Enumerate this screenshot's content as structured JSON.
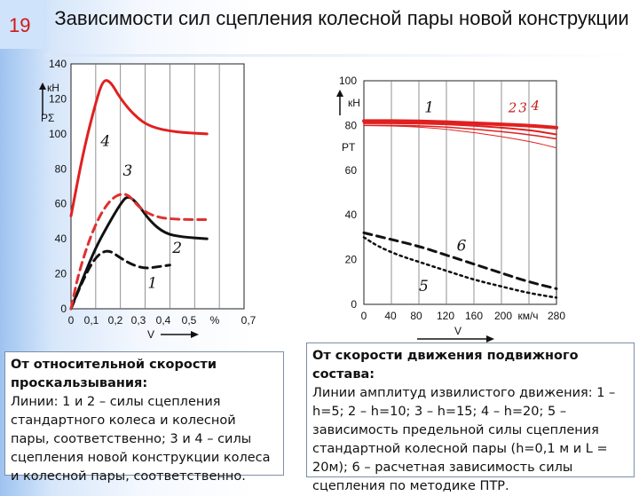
{
  "slide": {
    "number": "19",
    "title": "Зависимости сил сцепления колесной пары новой конструкции"
  },
  "left_box": {
    "heading": "От относительной скорости проскальзывания:",
    "text": "Линии: 1 и 2 – силы сцепления стандартного колеса и колесной пары, соответственно; 3 и 4 – силы сцепления новой конструкции колеса и колесной пары, соответственно."
  },
  "right_box": {
    "heading": "От скорости движения подвижного состава:",
    "text": "Линии амплитуд извилистого движения: 1 – h=5; 2 – h=10; 3 – h=15; 4 – h=20; 5 – зависимость предельной силы сцепления стандартной колесной пары (h=0,1 м и L = 20м); 6 – расчетная зависимость силы сцепления по методике ПТР."
  },
  "chart_data": [
    {
      "type": "line",
      "ylabel": "PΣ",
      "yunit": "кН",
      "xlabel": "V",
      "xunit": "%",
      "ylim": [
        0,
        140
      ],
      "xlim": [
        0,
        0.7
      ],
      "yticks": [
        "0",
        "20",
        "40",
        "60",
        "80",
        "100",
        "120",
        "140"
      ],
      "xticks": [
        "0",
        "0,1",
        "0,2",
        "0,3",
        "0,4",
        "0,5",
        "%",
        "0,7"
      ],
      "series": [
        {
          "name": "1",
          "color": "#111111",
          "dash": "dash",
          "width": 3,
          "points": [
            [
              0,
              0
            ],
            [
              0.05,
              17
            ],
            [
              0.1,
              30
            ],
            [
              0.15,
              34
            ],
            [
              0.2,
              29
            ],
            [
              0.25,
              25
            ],
            [
              0.3,
              23
            ],
            [
              0.35,
              24
            ],
            [
              0.4,
              25
            ]
          ]
        },
        {
          "name": "2",
          "color": "#111111",
          "dash": "solid",
          "width": 3,
          "points": [
            [
              0,
              0
            ],
            [
              0.05,
              18
            ],
            [
              0.1,
              35
            ],
            [
              0.15,
              48
            ],
            [
              0.2,
              60
            ],
            [
              0.23,
              65
            ],
            [
              0.27,
              60
            ],
            [
              0.32,
              50
            ],
            [
              0.38,
              43
            ],
            [
              0.45,
              41
            ],
            [
              0.55,
              40
            ]
          ]
        },
        {
          "name": "3",
          "color": "#e03030",
          "dash": "dash",
          "width": 3,
          "points": [
            [
              0,
              0
            ],
            [
              0.03,
              20
            ],
            [
              0.08,
              42
            ],
            [
              0.13,
              57
            ],
            [
              0.18,
              65
            ],
            [
              0.23,
              66
            ],
            [
              0.28,
              57
            ],
            [
              0.35,
              52
            ],
            [
              0.45,
              51
            ],
            [
              0.55,
              51
            ]
          ]
        },
        {
          "name": "4",
          "color": "#e02020",
          "dash": "solid",
          "width": 3,
          "points": [
            [
              0,
              53
            ],
            [
              0.05,
              90
            ],
            [
              0.1,
              118
            ],
            [
              0.13,
              131
            ],
            [
              0.16,
              130
            ],
            [
              0.2,
              120
            ],
            [
              0.26,
              110
            ],
            [
              0.32,
              104
            ],
            [
              0.42,
              101
            ],
            [
              0.55,
              100
            ]
          ]
        }
      ],
      "labels": [
        {
          "text": "4",
          "x": 0.12,
          "y": 93
        },
        {
          "text": "3",
          "x": 0.21,
          "y": 76
        },
        {
          "text": "2",
          "x": 0.41,
          "y": 32
        },
        {
          "text": "1",
          "x": 0.31,
          "y": 12
        }
      ]
    },
    {
      "type": "line",
      "ylabel": "PT",
      "yunit": "кН",
      "xlabel": "V",
      "xunit": "км/ч",
      "ylim": [
        0,
        100
      ],
      "xlim": [
        0,
        280
      ],
      "yticks": [
        "0",
        "20",
        "40",
        "60",
        "80",
        "100"
      ],
      "xticks": [
        "0",
        "40",
        "80",
        "120",
        "160",
        "200",
        "км/ч",
        "280"
      ],
      "series": [
        {
          "name": "1",
          "color": "#e02020",
          "dash": "solid",
          "width": 4,
          "points": [
            [
              0,
              82
            ],
            [
              80,
              82
            ],
            [
              160,
              81
            ],
            [
              240,
              80
            ],
            [
              280,
              79
            ]
          ]
        },
        {
          "name": "2",
          "color": "#e02020",
          "dash": "solid",
          "width": 2,
          "points": [
            [
              0,
              81
            ],
            [
              80,
              81
            ],
            [
              160,
              80
            ],
            [
              240,
              78
            ],
            [
              280,
              76
            ]
          ]
        },
        {
          "name": "3",
          "color": "#e02020",
          "dash": "solid",
          "width": 1.5,
          "points": [
            [
              0,
              80
            ],
            [
              80,
              80
            ],
            [
              160,
              78.5
            ],
            [
              240,
              76
            ],
            [
              280,
              74
            ]
          ]
        },
        {
          "name": "4",
          "color": "#e02020",
          "dash": "solid",
          "width": 1,
          "points": [
            [
              0,
              80
            ],
            [
              80,
              79.5
            ],
            [
              160,
              77
            ],
            [
              240,
              73
            ],
            [
              280,
              70
            ]
          ]
        },
        {
          "name": "5",
          "color": "#111111",
          "dash": "dot",
          "width": 2.5,
          "points": [
            [
              0,
              30
            ],
            [
              20,
              26
            ],
            [
              50,
              22
            ],
            [
              80,
              19
            ],
            [
              120,
              15
            ],
            [
              160,
              11
            ],
            [
              200,
              8
            ],
            [
              240,
              5
            ],
            [
              280,
              3
            ]
          ]
        },
        {
          "name": "6",
          "color": "#111111",
          "dash": "dash",
          "width": 3,
          "points": [
            [
              0,
              32
            ],
            [
              40,
              29
            ],
            [
              80,
              26
            ],
            [
              120,
              22
            ],
            [
              160,
              18
            ],
            [
              200,
              14
            ],
            [
              240,
              10
            ],
            [
              280,
              7
            ]
          ]
        }
      ],
      "labels": [
        {
          "text": "1",
          "x": 88,
          "y": 86,
          "color": "#111111"
        },
        {
          "text": "2",
          "x": 210,
          "y": 86,
          "color": "#c02020"
        },
        {
          "text": "3",
          "x": 225,
          "y": 86,
          "color": "#c02020"
        },
        {
          "text": "4",
          "x": 243,
          "y": 87,
          "color": "#c02020"
        },
        {
          "text": "6",
          "x": 135,
          "y": 24,
          "color": "#111111"
        },
        {
          "text": "5",
          "x": 80,
          "y": 6,
          "color": "#111111"
        }
      ]
    }
  ]
}
